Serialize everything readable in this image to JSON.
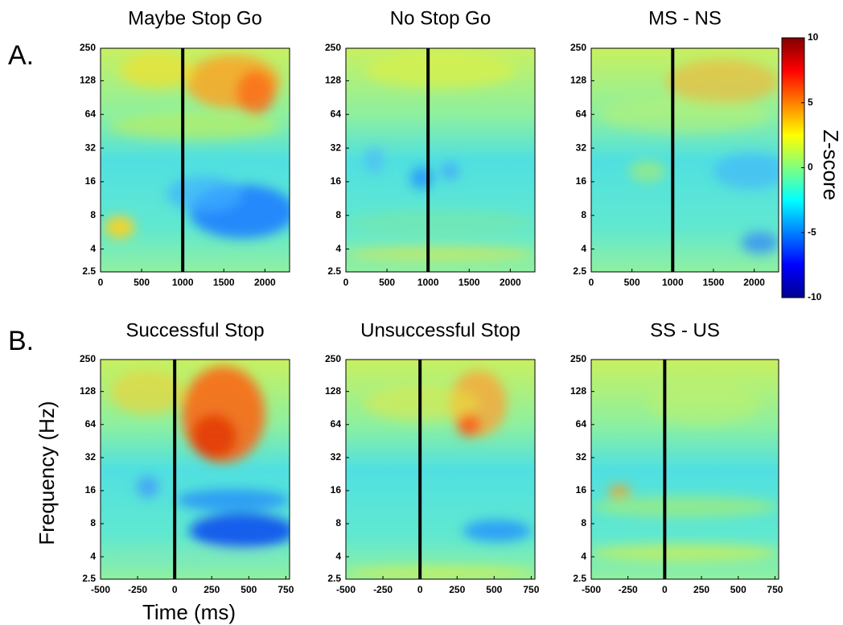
{
  "figure": {
    "row_a": "A.",
    "row_b": "B.",
    "y_axis": "Frequency (Hz)",
    "x_axis": "Time (ms)"
  },
  "colorbar": {
    "label": "Z-score",
    "lim": [
      -10,
      10
    ],
    "ticks": [
      -10,
      -5,
      0,
      5,
      10
    ]
  },
  "chart_data": [
    {
      "type": "heatmap",
      "title": "Maybe Stop Go",
      "xlim": [
        0,
        2300
      ],
      "xticks": [
        0,
        500,
        1000,
        1500,
        2000
      ],
      "ylim": [
        2.5,
        250
      ],
      "yticks": [
        2.5,
        4,
        8,
        16,
        32,
        64,
        128,
        250
      ],
      "ylog": true,
      "vline": 1000
    },
    {
      "type": "heatmap",
      "title": "No Stop Go",
      "xlim": [
        0,
        2300
      ],
      "xticks": [
        0,
        500,
        1000,
        1500,
        2000
      ],
      "ylim": [
        2.5,
        250
      ],
      "yticks": [
        2.5,
        4,
        8,
        16,
        32,
        64,
        128,
        250
      ],
      "ylog": true,
      "vline": 1000
    },
    {
      "type": "heatmap",
      "title": "MS - NS",
      "xlim": [
        0,
        2300
      ],
      "xticks": [
        0,
        500,
        1000,
        1500,
        2000
      ],
      "ylim": [
        2.5,
        250
      ],
      "yticks": [
        2.5,
        4,
        8,
        16,
        32,
        64,
        128,
        250
      ],
      "ylog": true,
      "vline": 1000
    },
    {
      "type": "heatmap",
      "title": "Successful Stop",
      "xlim": [
        -500,
        775
      ],
      "xticks": [
        -500,
        -250,
        0,
        250,
        500,
        750
      ],
      "ylim": [
        2.5,
        250
      ],
      "yticks": [
        2.5,
        4,
        8,
        16,
        32,
        64,
        128,
        250
      ],
      "ylog": true,
      "vline": 0
    },
    {
      "type": "heatmap",
      "title": "Unsuccessful Stop",
      "xlim": [
        -500,
        775
      ],
      "xticks": [
        -500,
        -250,
        0,
        250,
        500,
        750
      ],
      "ylim": [
        2.5,
        250
      ],
      "yticks": [
        2.5,
        4,
        8,
        16,
        32,
        64,
        128,
        250
      ],
      "ylog": true,
      "vline": 0
    },
    {
      "type": "heatmap",
      "title": "SS - US",
      "xlim": [
        -500,
        775
      ],
      "xticks": [
        -500,
        -250,
        0,
        250,
        500,
        750
      ],
      "ylim": [
        2.5,
        250
      ],
      "yticks": [
        2.5,
        4,
        8,
        16,
        32,
        64,
        128,
        250
      ],
      "ylog": true,
      "vline": 0
    }
  ]
}
